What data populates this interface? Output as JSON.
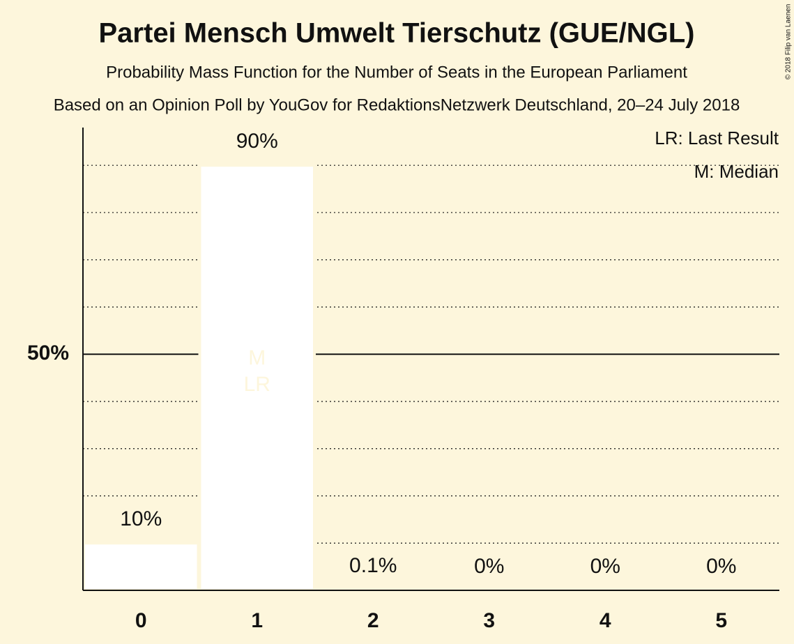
{
  "chart_data": {
    "type": "bar",
    "title": "Partei Mensch Umwelt Tierschutz (GUE/NGL)",
    "subtitle": "Probability Mass Function for the Number of Seats in the European Parliament",
    "source": "Based on an Opinion Poll by YouGov for RedaktionsNetzwerk Deutschland, 20–24 July 2018",
    "copyright": "© 2018 Filip van Laenen",
    "categories": [
      "0",
      "1",
      "2",
      "3",
      "4",
      "5"
    ],
    "values": [
      10,
      90,
      0.1,
      0,
      0,
      0
    ],
    "value_labels": [
      "10%",
      "90%",
      "0.1%",
      "0%",
      "0%",
      "0%"
    ],
    "color": "#ffffff",
    "ylim": [
      0,
      98
    ],
    "yticks": [
      {
        "value": 50,
        "label": "50%"
      }
    ],
    "minor_grid": [
      10,
      20,
      30,
      40,
      60,
      70,
      80,
      90
    ],
    "markers": [
      {
        "label": "M",
        "category": 1
      },
      {
        "label": "LR",
        "category": 1
      }
    ],
    "legend": [
      "LR: Last Result",
      "M: Median"
    ]
  }
}
